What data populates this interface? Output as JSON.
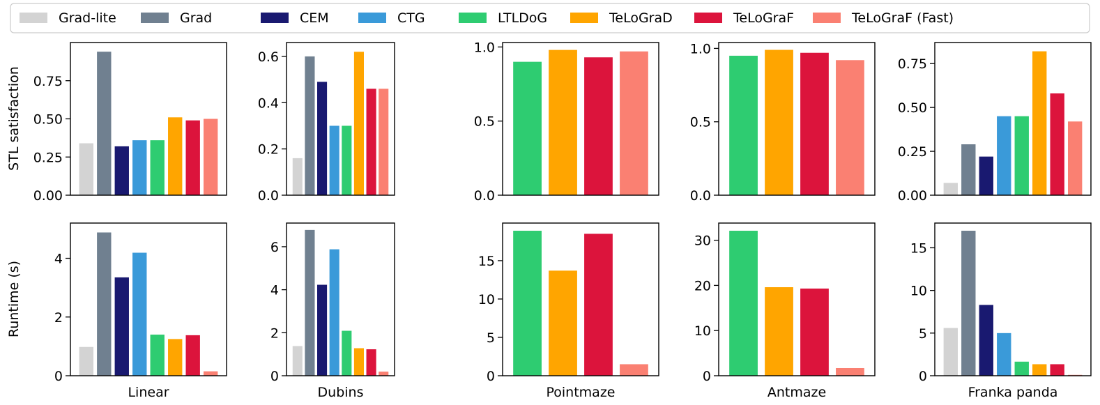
{
  "legend": {
    "placement": "top",
    "entries": [
      {
        "name": "Grad-lite",
        "color": "#d3d3d3"
      },
      {
        "name": "Grad",
        "color": "#708090"
      },
      {
        "name": "CEM",
        "color": "#191970"
      },
      {
        "name": "CTG",
        "color": "#3a9ad9"
      },
      {
        "name": "LTLDoG",
        "color": "#2ecc71"
      },
      {
        "name": "TeLoGraD",
        "color": "#ffa500"
      },
      {
        "name": "TeLoGraF",
        "color": "#dc143c"
      },
      {
        "name": "TeLoGraF (Fast)",
        "color": "#fa8072"
      }
    ]
  },
  "row_labels": [
    "STL satisfaction",
    "Runtime (s)"
  ],
  "chart_data": [
    {
      "type": "bar",
      "row": 0,
      "col": 0,
      "xlabel": "Linear",
      "ylabel": "STL satisfaction",
      "categories": [
        "Grad-lite",
        "Grad",
        "CEM",
        "CTG",
        "LTLDoG",
        "TeLoGraD",
        "TeLoGraF",
        "TeLoGraF (Fast)"
      ],
      "values": [
        0.34,
        0.94,
        0.32,
        0.36,
        0.36,
        0.51,
        0.49,
        0.5
      ],
      "ylim": [
        0,
        1.0
      ],
      "yticks": [
        0.0,
        0.25,
        0.5,
        0.75
      ],
      "yticklabels": [
        "0.00",
        "0.25",
        "0.50",
        "0.75"
      ],
      "grid": false
    },
    {
      "type": "bar",
      "row": 0,
      "col": 1,
      "xlabel": "Dubins",
      "ylabel": "",
      "categories": [
        "Grad-lite",
        "Grad",
        "CEM",
        "CTG",
        "LTLDoG",
        "TeLoGraD",
        "TeLoGraF",
        "TeLoGraF (Fast)"
      ],
      "values": [
        0.16,
        0.6,
        0.49,
        0.3,
        0.3,
        0.62,
        0.46,
        0.46
      ],
      "ylim": [
        0,
        0.66
      ],
      "yticks": [
        0.0,
        0.2,
        0.4,
        0.6
      ],
      "yticklabels": [
        "0.0",
        "0.2",
        "0.4",
        "0.6"
      ],
      "grid": false
    },
    {
      "type": "bar",
      "row": 0,
      "col": 2,
      "xlabel": "Pointmaze",
      "ylabel": "",
      "categories": [
        "LTLDoG",
        "TeLoGraD",
        "TeLoGraF",
        "TeLoGraF (Fast)"
      ],
      "values": [
        0.9,
        0.98,
        0.93,
        0.97
      ],
      "ylim": [
        0,
        1.03
      ],
      "yticks": [
        0.0,
        0.5,
        1.0
      ],
      "yticklabels": [
        "0.0",
        "0.5",
        "1.0"
      ],
      "grid": false
    },
    {
      "type": "bar",
      "row": 0,
      "col": 3,
      "xlabel": "Antmaze",
      "ylabel": "",
      "categories": [
        "LTLDoG",
        "TeLoGraD",
        "TeLoGraF",
        "TeLoGraF (Fast)"
      ],
      "values": [
        0.95,
        0.99,
        0.97,
        0.92
      ],
      "ylim": [
        0,
        1.04
      ],
      "yticks": [
        0.0,
        0.5,
        1.0
      ],
      "yticklabels": [
        "0.0",
        "0.5",
        "1.0"
      ],
      "grid": false
    },
    {
      "type": "bar",
      "row": 0,
      "col": 4,
      "xlabel": "Franka panda",
      "ylabel": "",
      "categories": [
        "Grad-lite",
        "Grad",
        "CEM",
        "CTG",
        "LTLDoG",
        "TeLoGraD",
        "TeLoGraF",
        "TeLoGraF (Fast)"
      ],
      "values": [
        0.07,
        0.29,
        0.22,
        0.45,
        0.45,
        0.82,
        0.58,
        0.42
      ],
      "ylim": [
        0,
        0.87
      ],
      "yticks": [
        0.0,
        0.25,
        0.5,
        0.75
      ],
      "yticklabels": [
        "0.00",
        "0.25",
        "0.50",
        "0.75"
      ],
      "grid": false
    },
    {
      "type": "bar",
      "row": 1,
      "col": 0,
      "xlabel": "Linear",
      "ylabel": "Runtime (s)",
      "categories": [
        "Grad-lite",
        "Grad",
        "CEM",
        "CTG",
        "LTLDoG",
        "TeLoGraD",
        "TeLoGraF",
        "TeLoGraF (Fast)"
      ],
      "values": [
        0.98,
        4.88,
        3.35,
        4.19,
        1.4,
        1.25,
        1.38,
        0.15
      ],
      "ylim": [
        0,
        5.2
      ],
      "yticks": [
        0,
        2,
        4
      ],
      "yticklabels": [
        "0",
        "2",
        "4"
      ],
      "grid": false
    },
    {
      "type": "bar",
      "row": 1,
      "col": 1,
      "xlabel": "Dubins",
      "ylabel": "",
      "categories": [
        "Grad-lite",
        "Grad",
        "CEM",
        "CTG",
        "LTLDoG",
        "TeLoGraD",
        "TeLoGraF",
        "TeLoGraF (Fast)"
      ],
      "values": [
        1.38,
        6.78,
        4.23,
        5.88,
        2.09,
        1.28,
        1.23,
        0.19
      ],
      "ylim": [
        0,
        7.1
      ],
      "yticks": [
        0,
        2,
        4,
        6
      ],
      "yticklabels": [
        "0",
        "2",
        "4",
        "6"
      ],
      "grid": false
    },
    {
      "type": "bar",
      "row": 1,
      "col": 2,
      "xlabel": "Pointmaze",
      "ylabel": "",
      "categories": [
        "LTLDoG",
        "TeLoGraD",
        "TeLoGraF",
        "TeLoGraF (Fast)"
      ],
      "values": [
        18.9,
        13.7,
        18.5,
        1.5
      ],
      "ylim": [
        0,
        19.9
      ],
      "yticks": [
        0,
        5,
        10,
        15
      ],
      "yticklabels": [
        "0",
        "5",
        "10",
        "15"
      ],
      "grid": false
    },
    {
      "type": "bar",
      "row": 1,
      "col": 3,
      "xlabel": "Antmaze",
      "ylabel": "",
      "categories": [
        "LTLDoG",
        "TeLoGraD",
        "TeLoGraF",
        "TeLoGraF (Fast)"
      ],
      "values": [
        32.1,
        19.6,
        19.3,
        1.7
      ],
      "ylim": [
        0,
        33.8
      ],
      "yticks": [
        0,
        10,
        20,
        30
      ],
      "yticklabels": [
        "0",
        "10",
        "20",
        "30"
      ],
      "grid": false
    },
    {
      "type": "bar",
      "row": 1,
      "col": 4,
      "xlabel": "Franka panda",
      "ylabel": "",
      "categories": [
        "Grad-lite",
        "Grad",
        "CEM",
        "CTG",
        "LTLDoG",
        "TeLoGraD",
        "TeLoGraF",
        "TeLoGraF (Fast)"
      ],
      "values": [
        5.6,
        17.0,
        8.3,
        5.0,
        1.65,
        1.35,
        1.35,
        0.1
      ],
      "ylim": [
        0,
        17.9
      ],
      "yticks": [
        0,
        5,
        10,
        15
      ],
      "yticklabels": [
        "0",
        "5",
        "10",
        "15"
      ],
      "grid": false
    }
  ]
}
